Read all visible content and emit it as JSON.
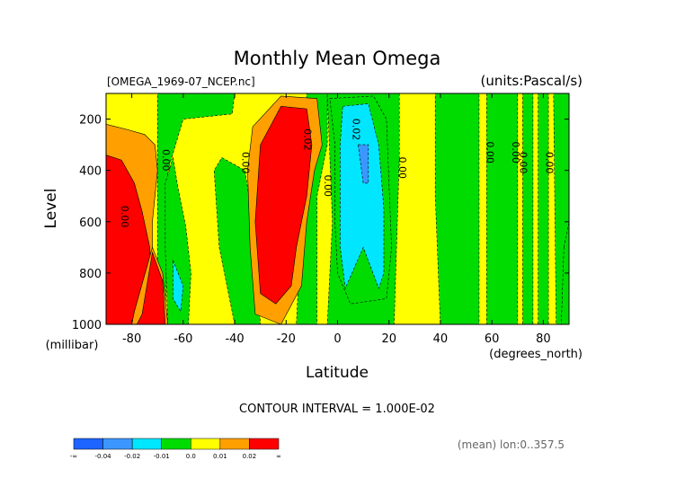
{
  "chart_data": {
    "type": "heatmap",
    "title": "Monthly Mean Omega",
    "file_label": "[OMEGA_1969-07_NCEP.nc]",
    "units_label": "(units:Pascal/s)",
    "xlabel": "Latitude",
    "x_units_label": "(degrees_north)",
    "ylabel": "Level",
    "y_units_label": "(millibar)",
    "xlim": [
      -90,
      90
    ],
    "ylim": [
      1000,
      100
    ],
    "x_ticks": [
      -80,
      -60,
      -40,
      -20,
      0,
      20,
      40,
      60,
      80
    ],
    "x_tick_labels": [
      "-80",
      "-60",
      "-40",
      "-20",
      "0",
      "20",
      "40",
      "60",
      "80"
    ],
    "y_ticks": [
      200,
      400,
      600,
      800,
      1000
    ],
    "y_tick_labels": [
      "200",
      "400",
      "600",
      "800",
      "1000"
    ],
    "contour_interval_text": "CONTOUR INTERVAL = 1.000E-02",
    "footer_text": "(mean) lon:0..357.5",
    "levels": [
      -0.04,
      -0.02,
      -0.01,
      0.0,
      0.01,
      0.02
    ],
    "colorbar": {
      "colors": [
        "#1e64ff",
        "#3c96ff",
        "#00e6ff",
        "#00dc00",
        "#ffff00",
        "#ffa000",
        "#ff0000"
      ],
      "tick_labels": [
        "-∞",
        "-0.04",
        "-0.02",
        "-0.01",
        "0.0",
        "0.01",
        "0.02",
        "∞"
      ]
    },
    "contour_labels": [
      {
        "text": "0.00",
        "lat": -68,
        "lev": 360
      },
      {
        "text": "0.00",
        "lat": -84,
        "lev": 580
      },
      {
        "text": "0.00",
        "lat": -37,
        "lev": 370
      },
      {
        "text": "0.02",
        "lat": -13,
        "lev": 280
      },
      {
        "text": "0.00",
        "lat": -5,
        "lev": 460
      },
      {
        "text": "0.02",
        "lat": 6,
        "lev": 240
      },
      {
        "text": "0.00",
        "lat": 24,
        "lev": 390
      },
      {
        "text": "0.00",
        "lat": 58,
        "lev": 330
      },
      {
        "text": "0.00",
        "lat": 68,
        "lev": 330
      },
      {
        "text": "0.00",
        "lat": 71,
        "lev": 370
      },
      {
        "text": "0.00",
        "lat": 81,
        "lev": 370
      }
    ],
    "regions": [
      {
        "level": 0.0,
        "points": [
          [
            -90,
            100
          ],
          [
            90,
            100
          ],
          [
            90,
            1000
          ],
          [
            -90,
            1000
          ]
        ]
      },
      {
        "level": -0.01,
        "points": [
          [
            -70,
            100
          ],
          [
            -40,
            100
          ],
          [
            -41,
            180
          ],
          [
            -60,
            200
          ],
          [
            -66,
            400
          ],
          [
            -67,
            1000
          ],
          [
            -70,
            1000
          ]
        ]
      },
      {
        "level": -0.01,
        "points": [
          [
            -45,
            350
          ],
          [
            -36,
            400
          ],
          [
            -33,
            600
          ],
          [
            -30,
            1000
          ],
          [
            -40,
            1000
          ],
          [
            -46,
            700
          ],
          [
            -48,
            400
          ]
        ]
      },
      {
        "level": -0.01,
        "points": [
          [
            -12,
            100
          ],
          [
            -4,
            100
          ],
          [
            -4,
            300
          ],
          [
            -8,
            500
          ],
          [
            -8,
            1000
          ],
          [
            -16,
            1000
          ],
          [
            -14,
            600
          ]
        ]
      },
      {
        "level": -0.01,
        "points": [
          [
            -4,
            100
          ],
          [
            24,
            100
          ],
          [
            24,
            350
          ],
          [
            22,
            1000
          ],
          [
            -4,
            1000
          ],
          [
            -2,
            600
          ]
        ]
      },
      {
        "level": -0.01,
        "points": [
          [
            38,
            100
          ],
          [
            55,
            100
          ],
          [
            55,
            1000
          ],
          [
            40,
            1000
          ],
          [
            38,
            500
          ]
        ]
      },
      {
        "level": -0.01,
        "points": [
          [
            58,
            100
          ],
          [
            70,
            100
          ],
          [
            70,
            1000
          ],
          [
            58,
            1000
          ]
        ]
      },
      {
        "level": -0.01,
        "points": [
          [
            72,
            100
          ],
          [
            76,
            100
          ],
          [
            76,
            1000
          ],
          [
            72,
            1000
          ]
        ]
      },
      {
        "level": -0.01,
        "points": [
          [
            78,
            100
          ],
          [
            82,
            100
          ],
          [
            82,
            1000
          ],
          [
            78,
            1000
          ]
        ]
      },
      {
        "level": -0.01,
        "points": [
          [
            84,
            100
          ],
          [
            90,
            100
          ],
          [
            90,
            1000
          ],
          [
            85,
            1000
          ]
        ]
      },
      {
        "level": 0.01,
        "points": [
          [
            -90,
            220
          ],
          [
            -82,
            240
          ],
          [
            -75,
            260
          ],
          [
            -71,
            300
          ],
          [
            -70,
            400
          ],
          [
            -72,
            600
          ],
          [
            -72,
            1000
          ],
          [
            -90,
            1000
          ]
        ]
      },
      {
        "level": 0.01,
        "points": [
          [
            -33,
            230
          ],
          [
            -22,
            110
          ],
          [
            -8,
            120
          ],
          [
            -6,
            300
          ],
          [
            -9,
            400
          ],
          [
            -12,
            600
          ],
          [
            -14,
            850
          ],
          [
            -22,
            1000
          ],
          [
            -32,
            960
          ],
          [
            -34,
            700
          ],
          [
            -35,
            400
          ]
        ]
      },
      {
        "level": -0.01,
        "points": [
          [
            -64,
            350
          ],
          [
            -62,
            470
          ],
          [
            -59,
            620
          ],
          [
            -57,
            800
          ],
          [
            -58,
            1000
          ],
          [
            -66,
            1000
          ],
          [
            -67,
            700
          ],
          [
            -67,
            450
          ]
        ]
      },
      {
        "level": -0.01,
        "points": [
          [
            -3,
            120
          ],
          [
            14,
            110
          ],
          [
            19,
            200
          ],
          [
            20,
            450
          ],
          [
            21,
            700
          ],
          [
            19,
            900
          ],
          [
            5,
            920
          ],
          [
            0,
            800
          ],
          [
            -1,
            600
          ],
          [
            -1,
            300
          ]
        ]
      },
      {
        "level": 0.02,
        "points": [
          [
            -90,
            340
          ],
          [
            -84,
            360
          ],
          [
            -79,
            450
          ],
          [
            -76,
            560
          ],
          [
            -73,
            700
          ],
          [
            -72,
            900
          ],
          [
            -72,
            1000
          ],
          [
            -90,
            1000
          ]
        ]
      },
      {
        "level": 0.01,
        "points": [
          [
            -79,
            950
          ],
          [
            -72,
            700
          ],
          [
            -68,
            800
          ],
          [
            -66,
            1000
          ],
          [
            -80,
            1000
          ]
        ]
      },
      {
        "level": 0.02,
        "points": [
          [
            -30,
            300
          ],
          [
            -22,
            150
          ],
          [
            -12,
            160
          ],
          [
            -10,
            300
          ],
          [
            -12,
            500
          ],
          [
            -16,
            700
          ],
          [
            -18,
            850
          ],
          [
            -24,
            920
          ],
          [
            -30,
            880
          ],
          [
            -32,
            600
          ]
        ]
      },
      {
        "level": 0.02,
        "points": [
          [
            -76,
            960
          ],
          [
            -72,
            720
          ],
          [
            -68,
            830
          ],
          [
            -67,
            1000
          ],
          [
            -78,
            1000
          ]
        ]
      },
      {
        "level": -0.02,
        "points": [
          [
            -64,
            750
          ],
          [
            -60,
            850
          ],
          [
            -61,
            950
          ],
          [
            -64,
            900
          ]
        ]
      },
      {
        "level": -0.02,
        "points": [
          [
            2,
            150
          ],
          [
            12,
            140
          ],
          [
            16,
            300
          ],
          [
            18,
            550
          ],
          [
            18,
            800
          ],
          [
            16,
            860
          ],
          [
            10,
            700
          ],
          [
            3,
            860
          ],
          [
            1,
            700
          ],
          [
            1,
            300
          ]
        ]
      },
      {
        "level": -0.04,
        "points": [
          [
            8,
            300
          ],
          [
            12,
            300
          ],
          [
            12,
            450
          ],
          [
            10,
            450
          ]
        ]
      },
      {
        "level": -0.01,
        "points": [
          [
            88,
            700
          ],
          [
            90,
            600
          ],
          [
            90,
            1000
          ],
          [
            87,
            1000
          ]
        ]
      }
    ]
  }
}
